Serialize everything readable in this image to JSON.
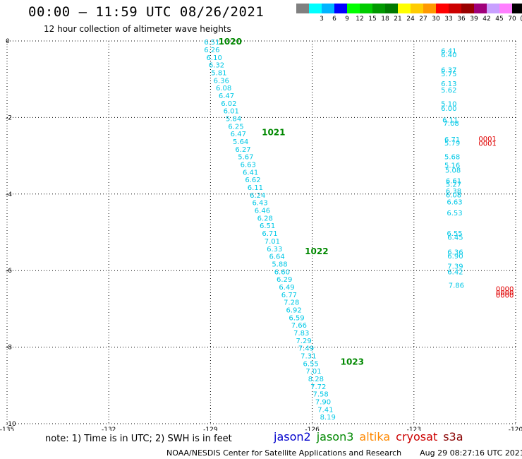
{
  "header": {
    "title": "00:00 – 11:59 UTC 08/26/2021",
    "subtitle": "12 hour collection of altimeter wave heights"
  },
  "color_scale": [
    {
      "label": "",
      "color": "#808080"
    },
    {
      "label": "3",
      "color": "#00ffff"
    },
    {
      "label": "6",
      "color": "#00b4ff"
    },
    {
      "label": "9",
      "color": "#0000ff"
    },
    {
      "label": "12",
      "color": "#00ff00"
    },
    {
      "label": "15",
      "color": "#00cc00"
    },
    {
      "label": "18",
      "color": "#009900"
    },
    {
      "label": "21",
      "color": "#007a00"
    },
    {
      "label": "24",
      "color": "#ffff00"
    },
    {
      "label": "27",
      "color": "#ffcc00"
    },
    {
      "label": "30",
      "color": "#ff9900"
    },
    {
      "label": "33",
      "color": "#ff0000"
    },
    {
      "label": "36",
      "color": "#cc0000"
    },
    {
      "label": "39",
      "color": "#990000"
    },
    {
      "label": "42",
      "color": "#a0007a"
    },
    {
      "label": "45",
      "color": "#c8a0ff"
    },
    {
      "label": "70",
      "color": "#ff80ff"
    },
    {
      "label": "(ft)",
      "color": "#000000"
    }
  ],
  "footer": {
    "note": "note:  1) Time is in UTC;  2) SWH is in feet",
    "legend": [
      {
        "name": "jason2",
        "color": "#0000cc"
      },
      {
        "name": "jason3",
        "color": "#008800"
      },
      {
        "name": "altika",
        "color": "#ff8800"
      },
      {
        "name": "cryosat",
        "color": "#cc0000"
      },
      {
        "name": "s3a",
        "color": "#880000"
      }
    ],
    "credit": "NOAA/NESDIS Center for Satellite Applications and Research",
    "timestamp": "Aug 29 08:27:16 UTC 2021"
  },
  "chart_data": {
    "type": "scatter",
    "xlim": [
      -135,
      -120
    ],
    "ylim": [
      -10,
      0
    ],
    "x_ticks": [
      -135,
      -132,
      -129,
      -126,
      -123,
      -120
    ],
    "y_ticks": [
      0,
      -2,
      -4,
      -6,
      -8,
      -10
    ],
    "grid": true,
    "series": [
      {
        "name": "jason3",
        "color": "#00c8e6",
        "x": [
          -128.96,
          -128.96,
          -128.89,
          -128.82,
          -128.75,
          -128.68,
          -128.61,
          -128.53,
          -128.46,
          -128.39,
          -128.32,
          -128.25,
          -128.18,
          -128.11,
          -128.04,
          -127.96,
          -127.89,
          -127.82,
          -127.75,
          -127.68,
          -127.61,
          -127.54,
          -127.47,
          -127.39,
          -127.32,
          -127.25,
          -127.18,
          -127.11,
          -127.04,
          -126.96,
          -126.89,
          -126.82,
          -126.75,
          -126.68,
          -126.61,
          -126.54,
          -126.46,
          -126.39,
          -126.32,
          -126.25,
          -126.18,
          -126.11,
          -126.04,
          -125.96,
          -125.89,
          -125.82,
          -125.75,
          -125.68,
          -125.61,
          -125.54,
          -125.46,
          -125.39,
          -125.32
        ],
        "y": [
          -0.02,
          -0.22,
          -0.42,
          -0.62,
          -0.82,
          -1.02,
          -1.22,
          -1.42,
          -1.62,
          -1.82,
          -2.02,
          -2.22,
          -2.42,
          -2.62,
          -2.82,
          -3.02,
          -3.22,
          -3.42,
          -3.62,
          -3.82,
          -4.02,
          -4.22,
          -4.42,
          -4.62,
          -4.82,
          -5.02,
          -5.22,
          -5.42,
          -5.62,
          -5.82,
          -6.02,
          -6.22,
          -6.42,
          -6.62,
          -6.82,
          -7.02,
          -7.22,
          -7.42,
          -7.62,
          -7.82,
          -8.02,
          -8.22,
          -8.42,
          -8.62,
          -8.82,
          -9.02,
          -9.22,
          -9.42,
          -9.62,
          -9.82,
          -10.02,
          -10.22,
          -10.42
        ],
        "labels": [
          "6.51",
          "6.26",
          "6.10",
          "6.32",
          "5.81",
          "6.36",
          "6.08",
          "6.47",
          "6.02",
          "6.01",
          "5.84",
          "6.25",
          "6.47",
          "5.64",
          "6.27",
          "5.67",
          "6.63",
          "6.41",
          "6.62",
          "6.11",
          "6.24",
          "6.43",
          "6.46",
          "6.28",
          "6.51",
          "6.71",
          "7.01",
          "6.33",
          "6.64",
          "5.88",
          "6.60",
          "6.29",
          "6.49",
          "6.77",
          "7.28",
          "6.92",
          "6.59",
          "7.66",
          "7.83",
          "7.29",
          "7.49",
          "7.31",
          "6.55",
          "7.01",
          "8.28",
          "7.72",
          "7.58",
          "7.90",
          "7.41",
          "8.19",
          "",
          "",
          ""
        ]
      },
      {
        "name": "jason3-right",
        "color": "#00c8e6",
        "x": [
          -121.97,
          -121.97,
          -121.97,
          -121.97,
          -121.97,
          -121.97,
          -121.97,
          -121.97,
          -121.93,
          -121.9,
          -121.87,
          -121.87,
          -121.87,
          -121.87,
          -121.85,
          -121.83,
          -121.83,
          -121.83,
          -121.83,
          -121.8,
          -121.8,
          -121.8,
          -121.78,
          -121.78,
          -121.78,
          -121.78,
          -121.78,
          -121.75
        ],
        "y": [
          -0.25,
          -0.35,
          -0.75,
          -0.85,
          -1.11,
          -1.27,
          -1.63,
          -1.75,
          -2.06,
          -2.14,
          -2.56,
          -2.66,
          -3.02,
          -3.24,
          -3.37,
          -3.64,
          -3.74,
          -3.91,
          -4.01,
          -4.2,
          -4.48,
          -5.02,
          -5.12,
          -5.51,
          -5.61,
          -5.88,
          -6.02,
          -6.37
        ],
        "labels": [
          "6.41",
          "6.40",
          "6.37",
          "5.75",
          "6.13",
          "5.62",
          "5.10",
          "6.00",
          "6.11",
          "7.08",
          "6.71",
          "5.79",
          "5.68",
          "5.16",
          "5.08",
          "6.61",
          "5.27",
          "6.38",
          "6.08",
          "6.63",
          "6.53",
          "6.55",
          "6.45",
          "6.36",
          "6.90",
          "7.39",
          "6.42",
          "7.86"
        ]
      },
      {
        "name": "cryosat",
        "color": "#e00000",
        "x": [
          -120.83,
          -120.83,
          -120.32,
          -120.32,
          -120.32
        ],
        "y": [
          -2.55,
          -2.67,
          -6.47,
          -6.57,
          -6.63
        ],
        "labels": [
          "0001",
          "0001",
          "0000",
          "0000",
          "0000"
        ]
      }
    ],
    "time_annotations": [
      {
        "label": "1020",
        "x": -128.42,
        "y": 0.0
      },
      {
        "label": "1021",
        "x": -127.14,
        "y": -2.37
      },
      {
        "label": "1022",
        "x": -125.87,
        "y": -5.48
      },
      {
        "label": "1023",
        "x": -124.82,
        "y": -8.37
      }
    ]
  }
}
